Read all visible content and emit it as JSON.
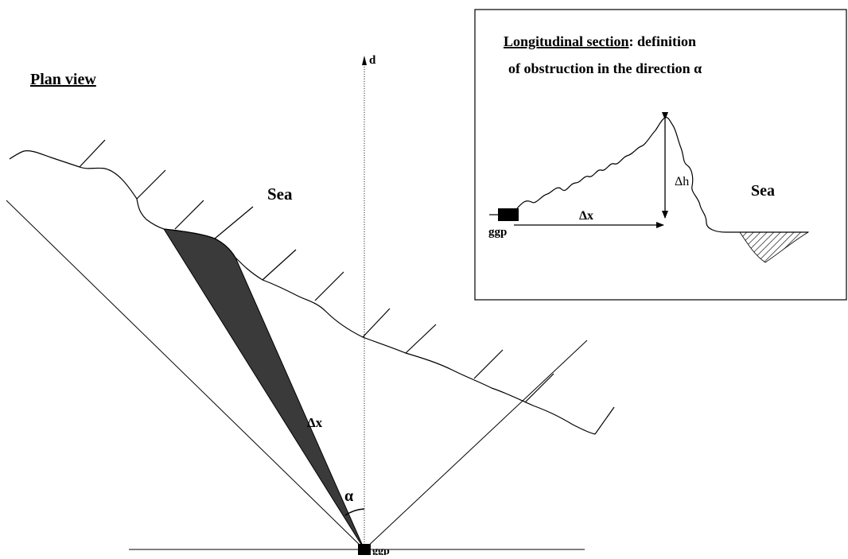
{
  "plan_view": {
    "title": "Plan view",
    "axis_label": "d",
    "sea_label": "Sea",
    "distance_label": "Δx",
    "angle_label": "α",
    "station_label": "ggp"
  },
  "inset": {
    "title_underlined": "Longitudinal section",
    "title_rest": ": definition",
    "title_line2": "of obstruction in the direction α",
    "height_label": "Δh",
    "distance_label": "Δx",
    "sea_label": "Sea",
    "station_label": "ggp"
  }
}
